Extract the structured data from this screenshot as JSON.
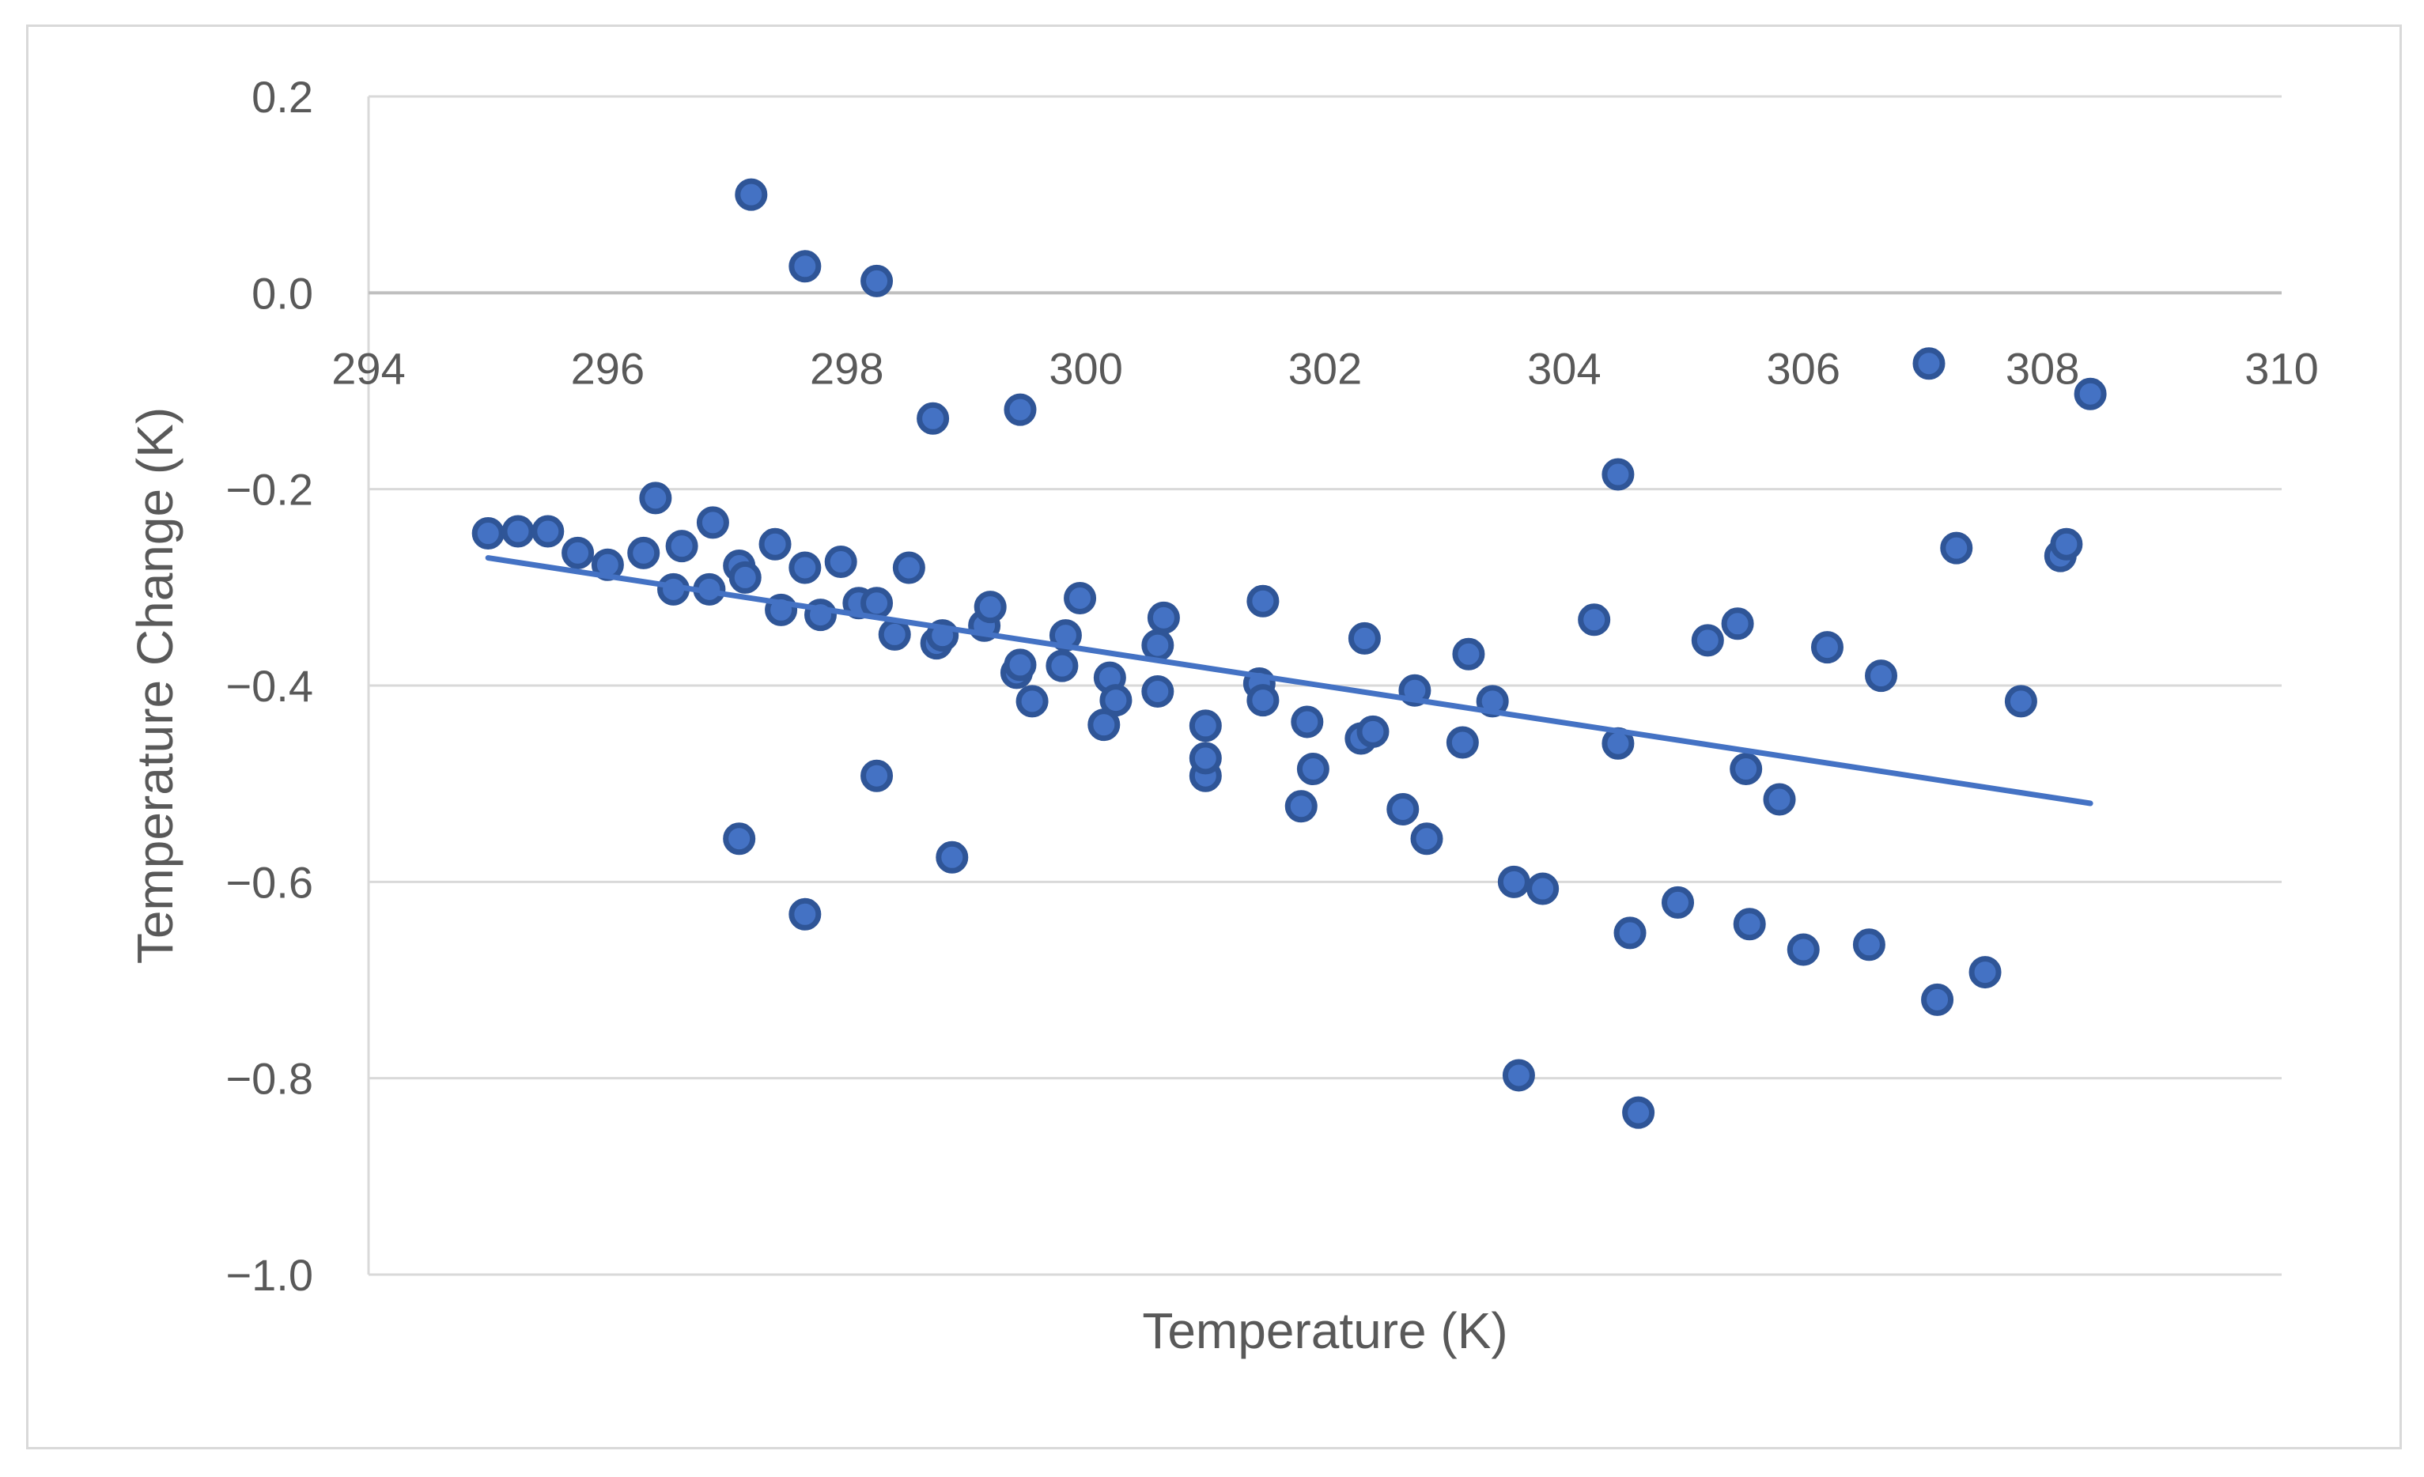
{
  "chart_data": {
    "type": "scatter",
    "title": "",
    "xlabel": "Temperature (K)",
    "ylabel": "Temperature Change (K)",
    "xlim": [
      294,
      310
    ],
    "ylim": [
      -1.0,
      0.2
    ],
    "x_ticks": [
      294,
      296,
      298,
      300,
      302,
      304,
      306,
      308,
      310
    ],
    "y_ticks": [
      0.2,
      0.0,
      -0.2,
      -0.4,
      -0.6,
      -0.8,
      -1.0
    ],
    "x_tick_labels": [
      "294",
      "296",
      "298",
      "300",
      "302",
      "304",
      "306",
      "308",
      "310"
    ],
    "y_tick_labels": [
      "0.2",
      "0.0",
      "−0.2",
      "−0.4",
      "−0.6",
      "−0.8",
      "−1.0"
    ],
    "grid": "horizontal",
    "legend": "none",
    "marker_color": "#4472c4",
    "marker_edge_color": "#2f5597",
    "trendline": {
      "type": "linear",
      "x": [
        295.0,
        308.4
      ],
      "y": [
        -0.27,
        -0.52
      ],
      "color": "#4472c4"
    },
    "series": [
      {
        "name": "Temperature Change",
        "points": [
          [
            295.0,
            -0.245
          ],
          [
            295.25,
            -0.243
          ],
          [
            295.5,
            -0.243
          ],
          [
            295.75,
            -0.265
          ],
          [
            296.0,
            -0.277
          ],
          [
            296.3,
            -0.265
          ],
          [
            296.4,
            -0.209
          ],
          [
            296.55,
            -0.302
          ],
          [
            296.62,
            -0.258
          ],
          [
            296.85,
            -0.302
          ],
          [
            296.88,
            -0.234
          ],
          [
            297.1,
            -0.278
          ],
          [
            297.15,
            -0.29
          ],
          [
            297.4,
            -0.256
          ],
          [
            297.45,
            -0.323
          ],
          [
            297.65,
            -0.28
          ],
          [
            297.78,
            -0.328
          ],
          [
            297.95,
            -0.274
          ],
          [
            298.1,
            -0.316
          ],
          [
            298.25,
            -0.316
          ],
          [
            298.4,
            -0.348
          ],
          [
            298.52,
            -0.28
          ],
          [
            298.75,
            -0.357
          ],
          [
            298.8,
            -0.349
          ],
          [
            299.15,
            -0.339
          ],
          [
            299.2,
            -0.32
          ],
          [
            299.42,
            -0.387
          ],
          [
            299.45,
            -0.379
          ],
          [
            299.55,
            -0.416
          ],
          [
            299.8,
            -0.38
          ],
          [
            299.83,
            -0.349
          ],
          [
            299.95,
            -0.311
          ],
          [
            300.15,
            -0.44
          ],
          [
            300.2,
            -0.392
          ],
          [
            300.25,
            -0.415
          ],
          [
            300.6,
            -0.359
          ],
          [
            300.6,
            -0.406
          ],
          [
            300.65,
            -0.331
          ],
          [
            301.0,
            -0.441
          ],
          [
            301.0,
            -0.492
          ],
          [
            301.0,
            -0.474
          ],
          [
            301.45,
            -0.398
          ],
          [
            301.48,
            -0.415
          ],
          [
            301.48,
            -0.314
          ],
          [
            301.8,
            -0.523
          ],
          [
            301.85,
            -0.437
          ],
          [
            301.9,
            -0.485
          ],
          [
            302.3,
            -0.454
          ],
          [
            302.33,
            -0.352
          ],
          [
            302.4,
            -0.447
          ],
          [
            302.65,
            -0.526
          ],
          [
            302.75,
            -0.405
          ],
          [
            302.85,
            -0.556
          ],
          [
            303.15,
            -0.458
          ],
          [
            303.2,
            -0.368
          ],
          [
            303.4,
            -0.416
          ],
          [
            303.58,
            -0.6
          ],
          [
            303.62,
            -0.797
          ],
          [
            303.82,
            -0.607
          ],
          [
            304.25,
            -0.333
          ],
          [
            304.45,
            -0.185
          ],
          [
            304.45,
            -0.459
          ],
          [
            304.55,
            -0.652
          ],
          [
            304.62,
            -0.835
          ],
          [
            304.95,
            -0.621
          ],
          [
            305.2,
            -0.354
          ],
          [
            305.45,
            -0.337
          ],
          [
            305.52,
            -0.485
          ],
          [
            305.55,
            -0.643
          ],
          [
            305.8,
            -0.516
          ],
          [
            306.0,
            -0.669
          ],
          [
            306.2,
            -0.361
          ],
          [
            306.55,
            -0.664
          ],
          [
            306.65,
            -0.39
          ],
          [
            307.05,
            -0.072
          ],
          [
            307.12,
            -0.72
          ],
          [
            307.28,
            -0.26
          ],
          [
            307.52,
            -0.692
          ],
          [
            307.82,
            -0.416
          ],
          [
            308.15,
            -0.268
          ],
          [
            308.2,
            -0.256
          ],
          [
            308.4,
            -0.103
          ],
          [
            297.2,
            0.1
          ],
          [
            297.65,
            0.027
          ],
          [
            298.25,
            0.012
          ],
          [
            298.72,
            -0.128
          ],
          [
            299.45,
            -0.119
          ],
          [
            297.1,
            -0.556
          ],
          [
            297.65,
            -0.633
          ],
          [
            298.25,
            -0.492
          ],
          [
            298.88,
            -0.575
          ]
        ]
      }
    ]
  }
}
